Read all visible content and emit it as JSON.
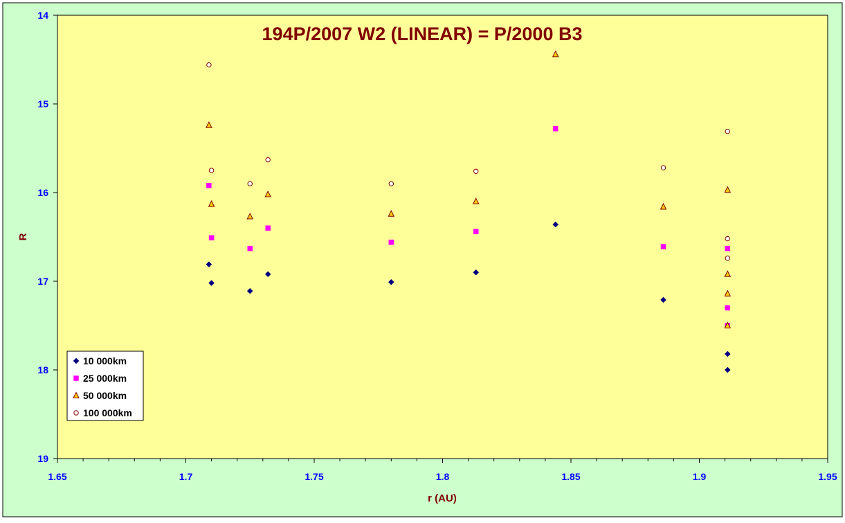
{
  "colors": {
    "outer_background": "#ccffcc",
    "plot_background": "#ffff99",
    "axis_line": "#000000",
    "title_color": "#800000",
    "tick_label_color": "#0000ff",
    "series_10000": "#000080",
    "series_25000": "#ff00ff",
    "series_50000_fill": "#ffcc00",
    "series_50000_stroke": "#800000",
    "series_100000_fill": "#ffffff",
    "series_100000_stroke": "#800000"
  },
  "chart_data": {
    "type": "scatter",
    "title": "194P/2007 W2 (LINEAR) = P/2000 B3",
    "xlabel": "r (AU)",
    "ylabel": "R",
    "xlim": [
      1.65,
      1.95
    ],
    "ylim": [
      14,
      19
    ],
    "y_reversed": true,
    "x_ticks": [
      "1.65",
      "1.7",
      "1.75",
      "1.8",
      "1.85",
      "1.9",
      "1.95"
    ],
    "y_ticks": [
      "14",
      "15",
      "16",
      "17",
      "18",
      "19"
    ],
    "grid": false,
    "legend_position": "bottom-left",
    "series": [
      {
        "name": "10 000km",
        "marker": "diamond",
        "points": [
          [
            1.709,
            16.81
          ],
          [
            1.71,
            17.02
          ],
          [
            1.725,
            17.11
          ],
          [
            1.732,
            16.92
          ],
          [
            1.78,
            17.01
          ],
          [
            1.813,
            16.9
          ],
          [
            1.844,
            16.36
          ],
          [
            1.886,
            17.21
          ],
          [
            1.911,
            17.82
          ],
          [
            1.911,
            18.0
          ]
        ]
      },
      {
        "name": "25 000km",
        "marker": "square",
        "points": [
          [
            1.709,
            15.92
          ],
          [
            1.71,
            16.51
          ],
          [
            1.725,
            16.63
          ],
          [
            1.732,
            16.4
          ],
          [
            1.78,
            16.56
          ],
          [
            1.813,
            16.44
          ],
          [
            1.844,
            15.28
          ],
          [
            1.886,
            16.61
          ],
          [
            1.911,
            16.63
          ],
          [
            1.911,
            17.3
          ],
          [
            1.911,
            17.5
          ]
        ]
      },
      {
        "name": "50 000km",
        "marker": "triangle",
        "points": [
          [
            1.709,
            15.24
          ],
          [
            1.71,
            16.13
          ],
          [
            1.725,
            16.27
          ],
          [
            1.732,
            16.02
          ],
          [
            1.78,
            16.24
          ],
          [
            1.813,
            16.1
          ],
          [
            1.844,
            14.44
          ],
          [
            1.886,
            16.16
          ],
          [
            1.911,
            15.97
          ],
          [
            1.911,
            16.92
          ],
          [
            1.911,
            17.14
          ],
          [
            1.911,
            17.5
          ]
        ]
      },
      {
        "name": "100 000km",
        "marker": "circle",
        "points": [
          [
            1.709,
            14.56
          ],
          [
            1.71,
            15.75
          ],
          [
            1.725,
            15.9
          ],
          [
            1.732,
            15.63
          ],
          [
            1.78,
            15.9
          ],
          [
            1.813,
            15.76
          ],
          [
            1.886,
            15.72
          ],
          [
            1.911,
            15.31
          ],
          [
            1.911,
            16.52
          ],
          [
            1.911,
            16.74
          ]
        ]
      }
    ]
  }
}
